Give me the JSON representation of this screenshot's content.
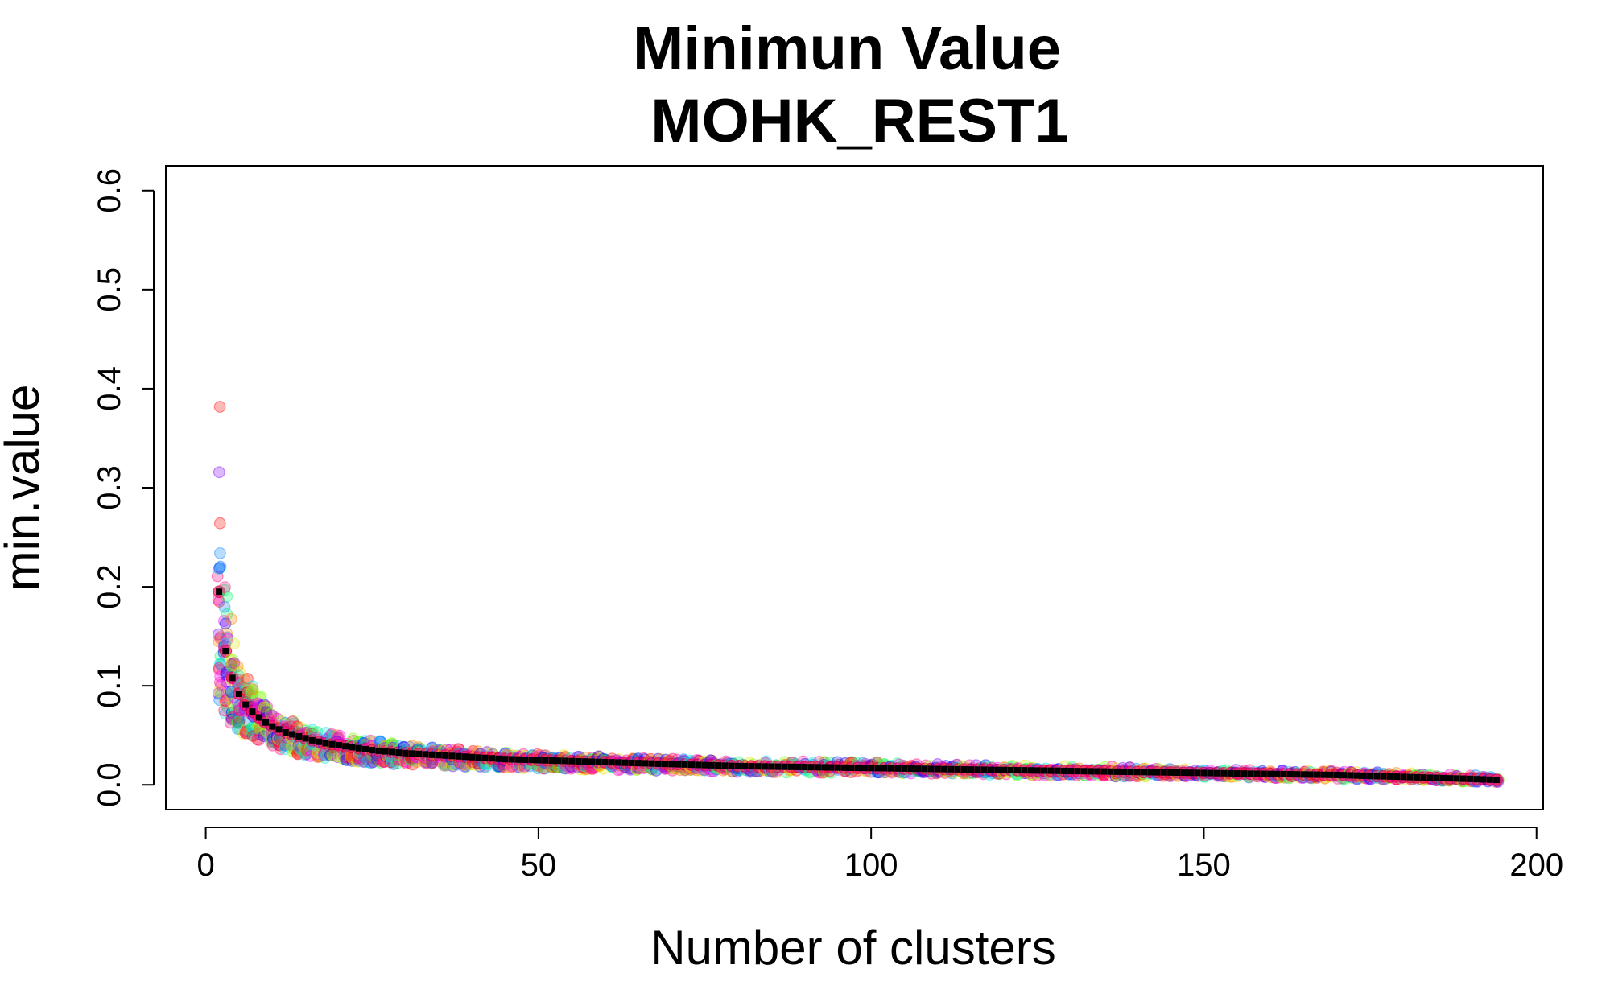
{
  "chart_data": {
    "type": "scatter",
    "title": "Minimun Value",
    "subtitle": "MOHK_REST1",
    "xlabel": "Number of clusters",
    "ylabel": "min.value",
    "xlim": [
      -6,
      201
    ],
    "ylim": [
      -0.025,
      0.625
    ],
    "x_ticks": [
      0,
      50,
      100,
      150,
      200
    ],
    "y_ticks": [
      0.0,
      0.1,
      0.2,
      0.3,
      0.4,
      0.5,
      0.6
    ],
    "x_tick_labels": [
      "0",
      "50",
      "100",
      "150",
      "200"
    ],
    "y_tick_labels": [
      "0.0",
      "0.1",
      "0.2",
      "0.3",
      "0.4",
      "0.5",
      "0.6"
    ],
    "grid": false,
    "legend": "none",
    "point_style": "semi-transparent open circles, many random runs, rainbow colors",
    "mean_series_color": "#000000",
    "x": [
      2,
      3,
      4,
      5,
      6,
      7,
      8,
      9,
      10,
      12,
      14,
      16,
      18,
      20,
      25,
      30,
      35,
      40,
      45,
      50,
      60,
      70,
      80,
      90,
      100,
      110,
      120,
      130,
      140,
      150,
      160,
      170,
      180,
      190,
      194
    ],
    "mean_values": [
      0.195,
      0.135,
      0.108,
      0.092,
      0.081,
      0.074,
      0.068,
      0.063,
      0.059,
      0.053,
      0.049,
      0.045,
      0.042,
      0.04,
      0.035,
      0.032,
      0.03,
      0.028,
      0.026,
      0.025,
      0.023,
      0.021,
      0.019,
      0.018,
      0.017,
      0.016,
      0.015,
      0.014,
      0.013,
      0.012,
      0.011,
      0.01,
      0.008,
      0.006,
      0.005
    ],
    "spread_max": [
      0.41,
      0.23,
      0.17,
      0.13,
      0.11,
      0.1,
      0.09,
      0.082,
      0.076,
      0.068,
      0.062,
      0.057,
      0.053,
      0.05,
      0.045,
      0.041,
      0.038,
      0.035,
      0.033,
      0.031,
      0.029,
      0.027,
      0.025,
      0.024,
      0.023,
      0.021,
      0.02,
      0.019,
      0.018,
      0.016,
      0.015,
      0.014,
      0.012,
      0.01,
      0.009
    ],
    "spread_min": [
      0.085,
      0.07,
      0.06,
      0.055,
      0.05,
      0.047,
      0.044,
      0.041,
      0.038,
      0.034,
      0.031,
      0.029,
      0.027,
      0.025,
      0.022,
      0.02,
      0.019,
      0.018,
      0.017,
      0.016,
      0.015,
      0.014,
      0.013,
      0.012,
      0.012,
      0.011,
      0.01,
      0.009,
      0.008,
      0.008,
      0.007,
      0.006,
      0.005,
      0.003,
      0.002
    ],
    "run_colors": [
      "#ff0000",
      "#ff7f00",
      "#e5e500",
      "#7fff00",
      "#00ff66",
      "#00e5e5",
      "#0080ff",
      "#0000ff",
      "#8000ff",
      "#ff00ff",
      "#ff0080",
      "#ff1493"
    ]
  }
}
